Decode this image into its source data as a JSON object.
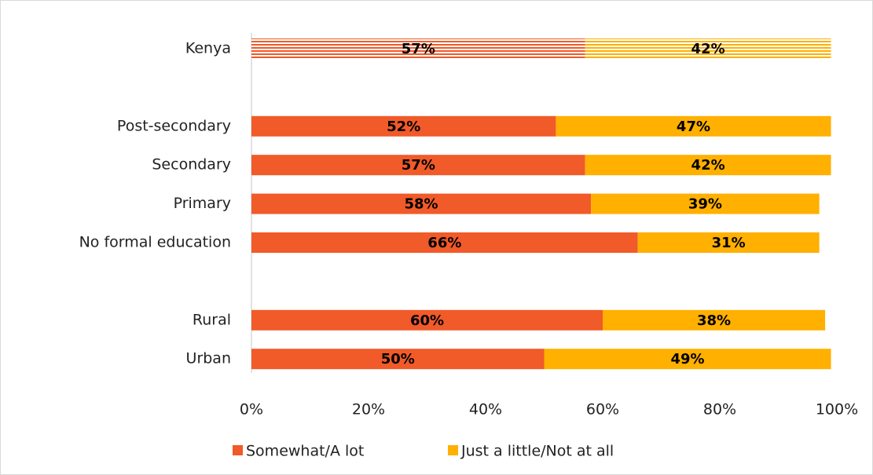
{
  "chart_data": {
    "type": "stacked-bar-horizontal",
    "categories": [
      "Kenya",
      null,
      "Post-secondary",
      "Secondary",
      "Primary",
      "No formal education",
      null,
      "Rural",
      "Urban"
    ],
    "bar_style": [
      "striped",
      null,
      "solid",
      "solid",
      "solid",
      "solid",
      null,
      "solid",
      "solid"
    ],
    "series": [
      {
        "name": "Somewhat/A lot",
        "color": "#f15a29",
        "values": [
          57,
          null,
          52,
          57,
          58,
          66,
          null,
          60,
          50
        ],
        "value_labels": [
          "57%",
          null,
          "52%",
          "57%",
          "58%",
          "66%",
          null,
          "60%",
          "50%"
        ]
      },
      {
        "name": "Just a little/Not at all",
        "color": "#ffb000",
        "values": [
          42,
          null,
          47,
          42,
          39,
          31,
          null,
          38,
          49
        ],
        "value_labels": [
          "42%",
          null,
          "47%",
          "42%",
          "39%",
          "31%",
          null,
          "38%",
          "49%"
        ]
      }
    ],
    "xlim": [
      0,
      100
    ],
    "xticks": [
      {
        "value": 0,
        "label": "0%"
      },
      {
        "value": 20,
        "label": "20%"
      },
      {
        "value": 40,
        "label": "40%"
      },
      {
        "value": 60,
        "label": "60%"
      },
      {
        "value": 80,
        "label": "80%"
      },
      {
        "value": 100,
        "label": "100%"
      }
    ],
    "legend": "bottom"
  }
}
